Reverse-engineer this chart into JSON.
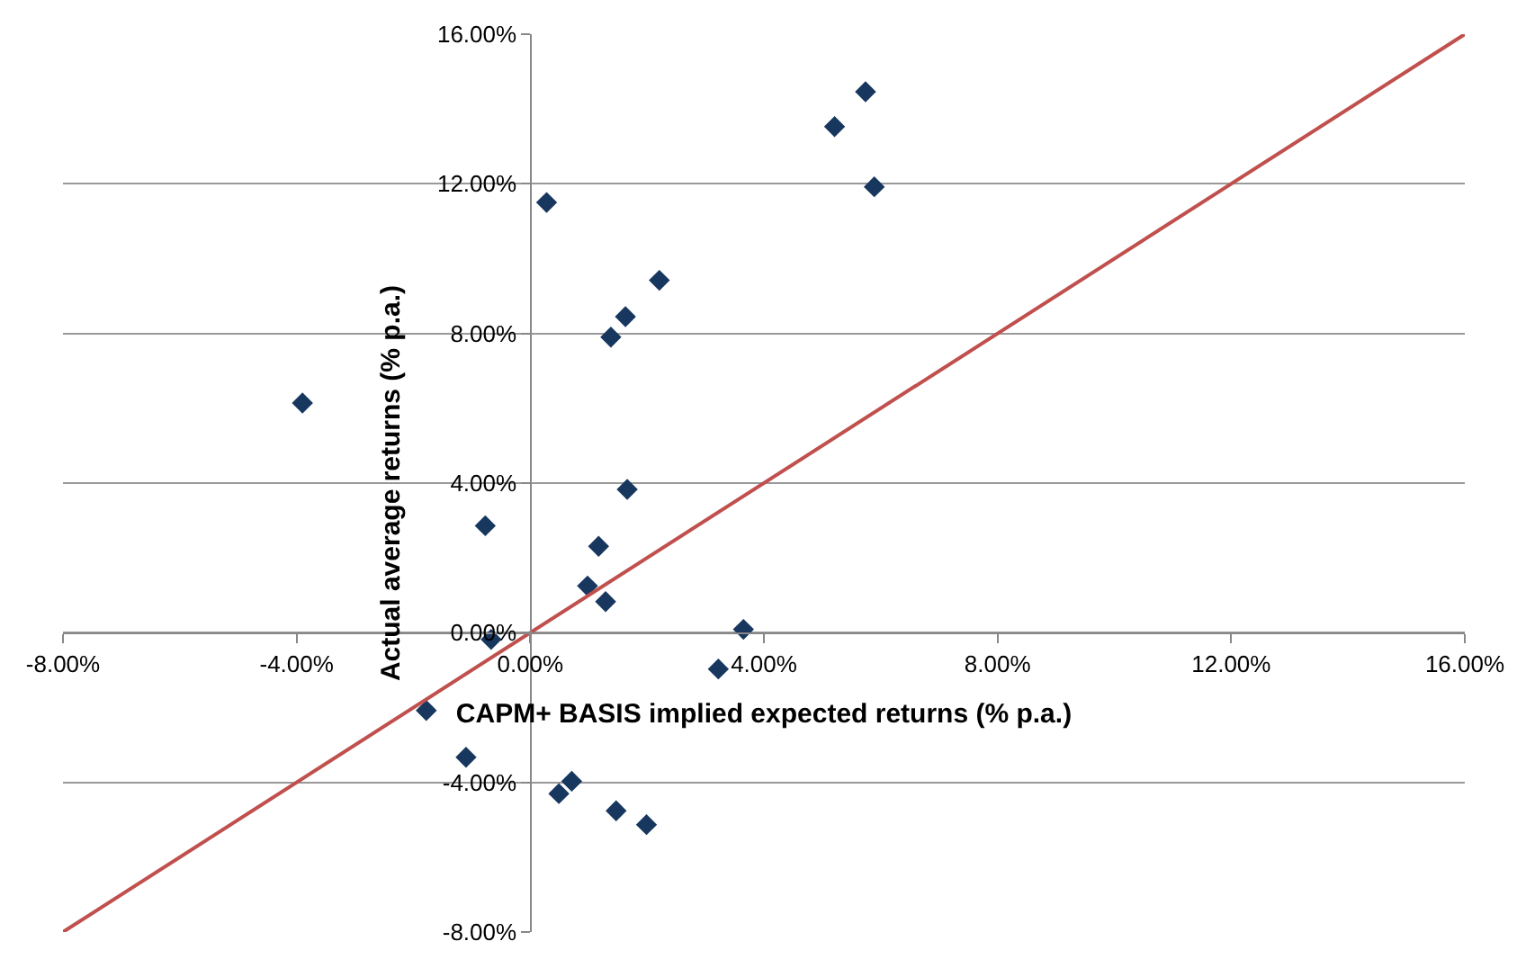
{
  "chart_data": {
    "type": "scatter",
    "xlabel": "CAPM+ BASIS implied expected returns (% p.a.)",
    "ylabel": "Actual average returns (% p.a.)",
    "xlim": [
      -8,
      16
    ],
    "ylim": [
      -8,
      16
    ],
    "xticks": [
      {
        "value": -8,
        "label": "-8.00%"
      },
      {
        "value": -4,
        "label": "-4.00%"
      },
      {
        "value": 0,
        "label": "0.00%"
      },
      {
        "value": 4,
        "label": "4.00%"
      },
      {
        "value": 8,
        "label": "8.00%"
      },
      {
        "value": 12,
        "label": "12.00%"
      },
      {
        "value": 16,
        "label": "16.00%"
      }
    ],
    "yticks": [
      {
        "value": -8,
        "label": "-8.00%"
      },
      {
        "value": -4,
        "label": "-4.00%"
      },
      {
        "value": 0,
        "label": "0.00%"
      },
      {
        "value": 4,
        "label": "4.00%"
      },
      {
        "value": 8,
        "label": "8.00%"
      },
      {
        "value": 12,
        "label": "12.00%"
      },
      {
        "value": 16,
        "label": "16.00%"
      }
    ],
    "grid": "y",
    "series": [
      {
        "color": "#17375e",
        "marker": "diamond",
        "x": [
          5.89,
          5.74,
          5.21,
          0.28,
          2.21,
          1.63,
          1.38,
          -3.9,
          1.66,
          -0.77,
          1.17,
          0.98,
          1.29,
          -0.67,
          3.65,
          3.22,
          -1.78,
          -1.1,
          0.71,
          0.49,
          1.47,
          1.99
        ],
        "values": [
          11.92,
          14.46,
          13.53,
          11.5,
          9.42,
          8.45,
          7.9,
          6.14,
          3.83,
          2.86,
          2.31,
          1.25,
          0.83,
          -0.18,
          0.09,
          -0.97,
          -2.08,
          -3.33,
          -3.97,
          -4.3,
          -4.76,
          -5.13
        ]
      },
      {
        "type": "line",
        "color": "#c0504d",
        "marker": "none",
        "x": [
          -8,
          16
        ],
        "values": [
          -8,
          16
        ]
      }
    ]
  }
}
